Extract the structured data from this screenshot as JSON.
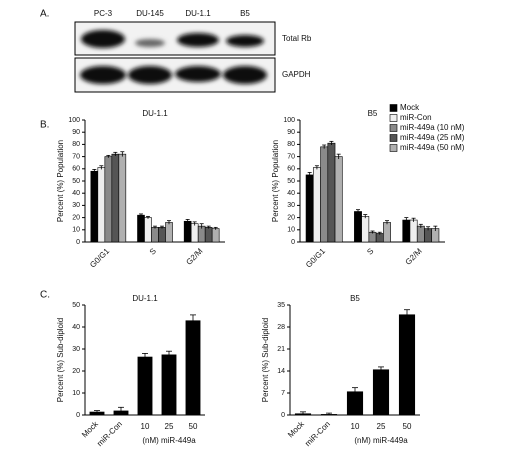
{
  "panel_labels": [
    "A.",
    "B.",
    "C."
  ],
  "blot": {
    "lanes": [
      "PC-3",
      "DU-145",
      "DU-1.1",
      "B5"
    ],
    "rows": [
      "Total Rb",
      "GAPDH"
    ]
  },
  "chart_data": [
    {
      "type": "bar",
      "title": "DU-1.1",
      "ylabel": "Percent (%) Population",
      "categories": [
        "G0/G1",
        "S",
        "G2/M"
      ],
      "series": [
        {
          "name": "Mock",
          "color": "#000000",
          "values": [
            58,
            22,
            17
          ],
          "errors": [
            1.5,
            1,
            1.5
          ]
        },
        {
          "name": "miR-Con",
          "color": "#eeeeee",
          "values": [
            61,
            20,
            15
          ],
          "errors": [
            1.5,
            1,
            1.5
          ]
        },
        {
          "name": "miR-449a (10 nM)",
          "color": "#8a8a8a",
          "values": [
            70,
            12,
            13
          ],
          "errors": [
            1,
            1,
            2
          ]
        },
        {
          "name": "miR-449a (25 nM)",
          "color": "#555555",
          "values": [
            72,
            12,
            12
          ],
          "errors": [
            1.5,
            1,
            1
          ]
        },
        {
          "name": "miR-449a (50 nM)",
          "color": "#b0b0b0",
          "values": [
            72,
            16,
            11
          ],
          "errors": [
            2,
            1.5,
            1
          ]
        }
      ],
      "ylim": [
        0,
        100
      ],
      "yticks": [
        0,
        10,
        20,
        30,
        40,
        50,
        60,
        70,
        80,
        90,
        100
      ]
    },
    {
      "type": "bar",
      "title": "B5",
      "ylabel": "Percent (%) Population",
      "categories": [
        "G0/G1",
        "S",
        "G2/M"
      ],
      "series": [
        {
          "name": "Mock",
          "color": "#000000",
          "values": [
            55,
            25,
            18
          ],
          "errors": [
            2,
            1.5,
            2
          ]
        },
        {
          "name": "miR-Con",
          "color": "#eeeeee",
          "values": [
            61,
            21,
            18
          ],
          "errors": [
            1.5,
            1.5,
            1.5
          ]
        },
        {
          "name": "miR-449a (10 nM)",
          "color": "#8a8a8a",
          "values": [
            78,
            8,
            13
          ],
          "errors": [
            1.5,
            1,
            1.5
          ]
        },
        {
          "name": "miR-449a (25 nM)",
          "color": "#555555",
          "values": [
            81,
            7,
            11
          ],
          "errors": [
            1.5,
            1,
            1.5
          ]
        },
        {
          "name": "miR-449a (50 nM)",
          "color": "#b0b0b0",
          "values": [
            70,
            16,
            11
          ],
          "errors": [
            2,
            1.5,
            2
          ]
        }
      ],
      "ylim": [
        0,
        100
      ],
      "yticks": [
        0,
        10,
        20,
        30,
        40,
        50,
        60,
        70,
        80,
        90,
        100
      ],
      "legend": true
    },
    {
      "type": "bar",
      "title": "DU-1.1",
      "ylabel": "Percent (%) Sub-diploid",
      "xlabel": "(nM) miR-449a",
      "categories": [
        "Mock",
        "miR-Con",
        "10",
        "25",
        "50"
      ],
      "color": "#000000",
      "values": [
        1.5,
        2,
        26.5,
        27.5,
        43
      ],
      "errors": [
        0.5,
        1.5,
        1.5,
        1.5,
        2.5
      ],
      "ylim": [
        0,
        50
      ],
      "yticks": [
        0,
        10,
        20,
        30,
        40,
        50
      ]
    },
    {
      "type": "bar",
      "title": "B5",
      "ylabel": "Percent (%) Sub-diploid",
      "xlabel": "(nM) miR-449a",
      "categories": [
        "Mock",
        "miR-Con",
        "10",
        "25",
        "50"
      ],
      "color": "#000000",
      "values": [
        0.5,
        0.3,
        7.5,
        14.5,
        32
      ],
      "errors": [
        0.5,
        0.3,
        1.2,
        0.8,
        1.5
      ],
      "ylim": [
        0,
        35
      ],
      "yticks": [
        0,
        7,
        14,
        21,
        28,
        35
      ]
    }
  ]
}
